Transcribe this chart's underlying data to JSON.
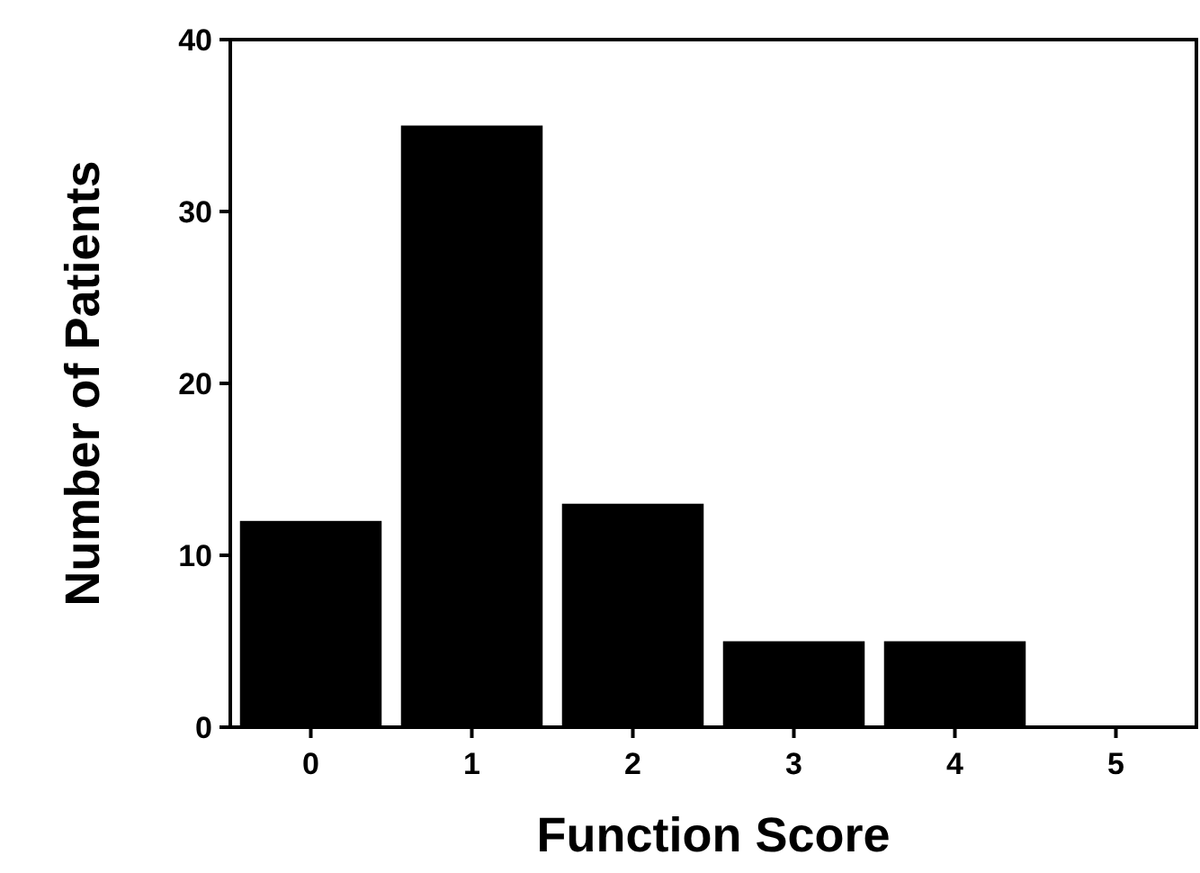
{
  "chart_data": {
    "type": "bar",
    "xlabel": "Function Score",
    "ylabel": "Number of Patients",
    "categories": [
      "0",
      "1",
      "2",
      "3",
      "4",
      "5"
    ],
    "values": [
      12,
      35,
      13,
      5,
      5,
      0
    ],
    "color": "#000000",
    "ylim": [
      0,
      40
    ],
    "yticks": [
      0,
      10,
      20,
      30,
      40
    ],
    "grid": false
  }
}
